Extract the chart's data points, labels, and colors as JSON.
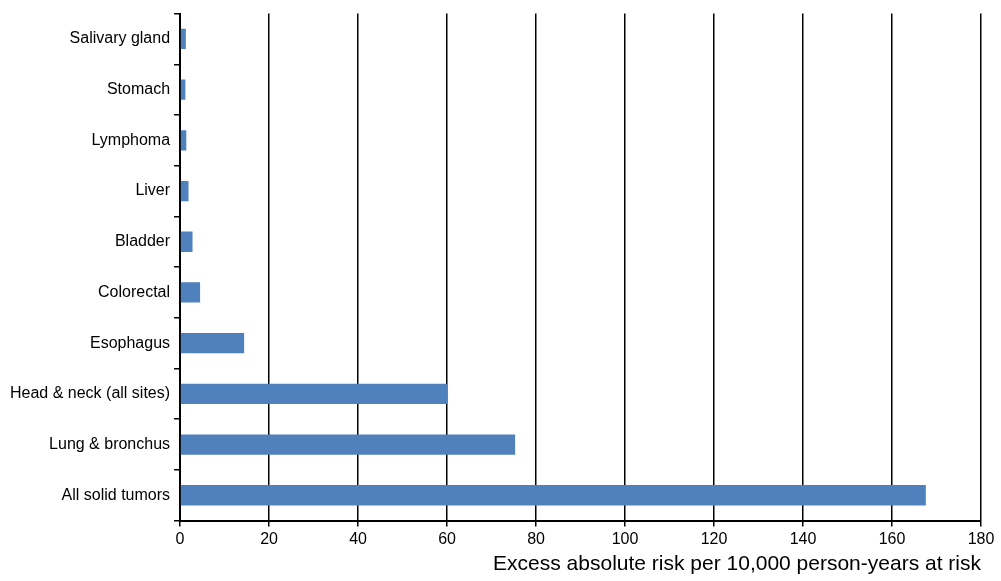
{
  "chart_data": {
    "type": "bar",
    "orientation": "horizontal",
    "xlabel": "Excess absolute risk per 10,000 person-years at risk",
    "categories": [
      "Salivary gland",
      "Stomach",
      "Lymphoma",
      "Liver",
      "Bladder",
      "Colorectal",
      "Esophagus",
      "Head & neck (all sites)",
      "Lung & bronchus",
      "All solid tumors"
    ],
    "values": [
      1.3,
      1.2,
      1.4,
      1.9,
      2.8,
      4.5,
      14.4,
      60,
      75.3,
      167.6
    ],
    "color": "#4f81bd",
    "xlim": [
      0,
      180
    ],
    "xticks": [
      0,
      20,
      40,
      60,
      80,
      100,
      120,
      140,
      160,
      180
    ],
    "grid": "x",
    "legend": false
  }
}
